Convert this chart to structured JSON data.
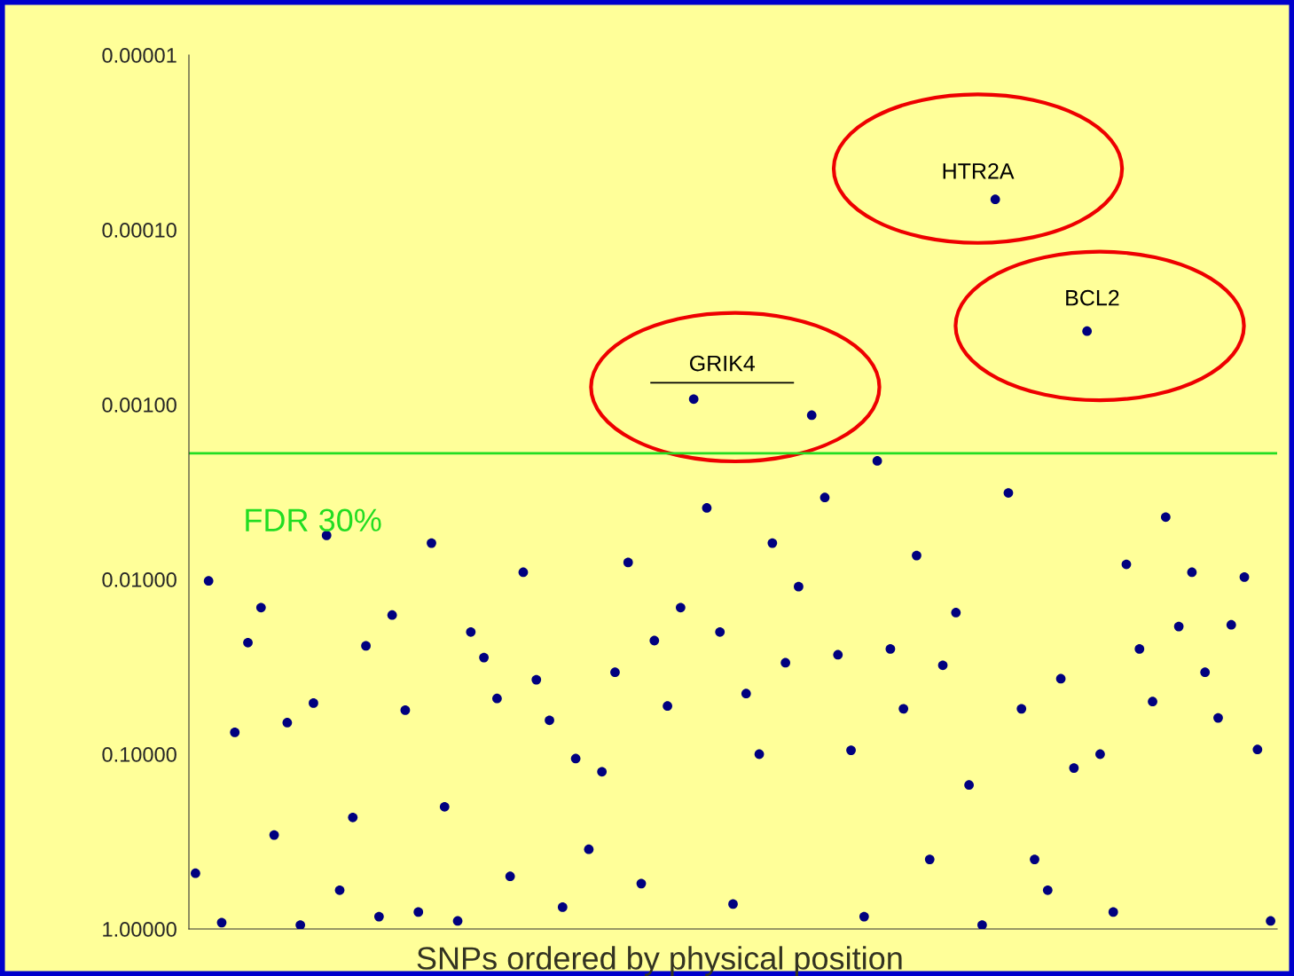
{
  "chart_data": {
    "type": "scatter",
    "xlabel": "SNPs ordered by physical position",
    "categories": [
      null,
      null,
      null,
      null,
      null,
      null,
      null,
      null,
      null,
      null,
      null,
      null,
      null,
      null,
      null,
      null,
      null,
      null,
      null,
      null,
      null,
      null,
      null,
      null,
      null,
      null,
      null,
      null,
      null,
      null,
      null,
      null,
      null,
      null,
      null,
      null,
      null,
      null,
      null,
      null,
      null,
      null,
      null,
      null,
      null,
      null,
      null,
      null,
      null,
      null,
      null,
      null,
      null,
      null,
      null,
      null,
      null,
      null,
      null,
      null,
      null,
      null,
      null,
      null,
      null,
      null,
      null,
      null,
      null,
      null,
      null,
      null,
      null,
      null,
      null,
      null,
      null,
      null,
      null,
      null,
      null,
      null,
      null
    ],
    "series": [
      {
        "color": "#00007f",
        "values": [
          0.48,
          0.0102,
          0.92,
          0.075,
          0.023,
          0.0145,
          0.29,
          0.066,
          0.95,
          0.051,
          0.0056,
          0.6,
          0.23,
          0.024,
          0.85,
          0.016,
          0.056,
          0.8,
          0.0062,
          0.2,
          0.9,
          0.02,
          0.028,
          0.048,
          0.5,
          0.0091,
          0.0375,
          0.064,
          0.75,
          0.106,
          0.35,
          0.126,
          0.034,
          0.008,
          0.55,
          0.0224,
          0.053,
          0.0145,
          0.00093,
          0.0039,
          0.02,
          0.72,
          0.045,
          0.1,
          0.0062,
          0.03,
          0.011,
          0.00115,
          0.0034,
          0.027,
          0.095,
          0.85,
          0.0021,
          0.025,
          0.055,
          0.0073,
          0.4,
          0.031,
          0.0155,
          0.15,
          0.95,
          6.7e-05,
          0.0032,
          0.055,
          0.4,
          0.6,
          0.037,
          0.12,
          0.00038,
          0.1,
          0.8,
          0.0082,
          0.025,
          0.05,
          0.0044,
          0.0186,
          0.0091,
          0.034,
          0.062,
          0.0182,
          0.0097,
          0.094,
          0.9
        ]
      }
    ],
    "marker": "circle",
    "log": "y",
    "ylim": [
      1,
      1e-05
    ],
    "yticks": [
      {
        "value": 1e-05,
        "label": "0.00001"
      },
      {
        "value": 0.0001,
        "label": "0.00010"
      },
      {
        "value": 0.001,
        "label": "0.00100"
      },
      {
        "value": 0.01,
        "label": "0.01000"
      },
      {
        "value": 0.1,
        "label": "0.10000"
      },
      {
        "value": 1,
        "label": "1.00000"
      }
    ],
    "tick_labels": "y",
    "grid": false,
    "legend": false,
    "ref_lines": [
      {
        "axis": "y",
        "value": 0.0019,
        "label": "FDR 30%",
        "color": "#22dd22"
      }
    ],
    "annotations": [
      "GRIK4",
      "HTR2A",
      "BCL2"
    ]
  }
}
